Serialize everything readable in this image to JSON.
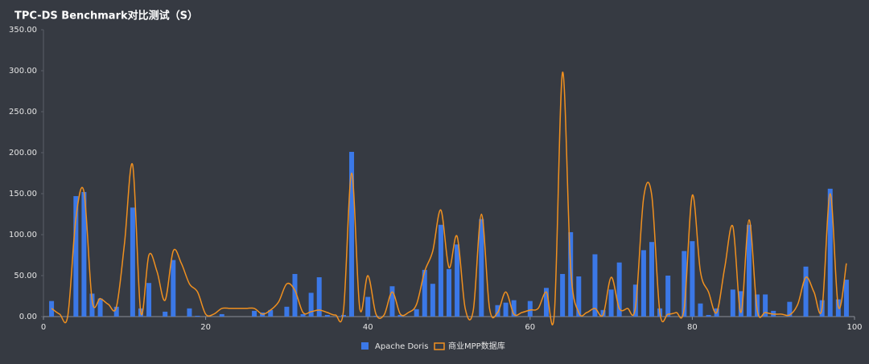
{
  "chart_data": {
    "type": "bar-line",
    "title": "TPC-DS Benchmark对比测试（S）",
    "x": [
      1,
      2,
      3,
      4,
      5,
      6,
      7,
      8,
      9,
      10,
      11,
      12,
      13,
      14,
      15,
      16,
      17,
      18,
      19,
      20,
      21,
      22,
      23,
      24,
      25,
      26,
      27,
      28,
      29,
      30,
      31,
      32,
      33,
      34,
      35,
      36,
      37,
      38,
      39,
      40,
      41,
      42,
      43,
      44,
      45,
      46,
      47,
      48,
      49,
      50,
      51,
      52,
      53,
      54,
      55,
      56,
      57,
      58,
      59,
      60,
      61,
      62,
      63,
      64,
      65,
      66,
      67,
      68,
      69,
      70,
      71,
      72,
      73,
      74,
      75,
      76,
      77,
      78,
      79,
      80,
      81,
      82,
      83,
      84,
      85,
      86,
      87,
      88,
      89,
      90,
      91,
      92,
      93,
      94,
      95,
      96,
      97,
      98,
      99
    ],
    "series": [
      {
        "name": "Apache Doris",
        "color": "#3b78e7",
        "kind": "bar",
        "values": [
          19,
          0,
          0,
          147,
          152,
          28,
          22,
          0,
          12,
          0,
          133,
          10,
          41,
          0,
          6,
          69,
          0,
          10,
          1,
          0,
          0,
          3,
          0,
          0,
          0,
          7,
          5,
          8,
          0,
          12,
          52,
          3,
          29,
          48,
          2,
          0,
          2,
          201,
          0,
          24,
          1,
          0,
          37,
          2,
          0,
          9,
          57,
          40,
          112,
          58,
          88,
          0,
          0,
          119,
          0,
          14,
          17,
          20,
          0,
          19,
          0,
          35,
          0,
          52,
          103,
          49,
          0,
          76,
          8,
          33,
          66,
          0,
          39,
          81,
          91,
          10,
          50,
          0,
          80,
          92,
          16,
          2,
          10,
          0,
          33,
          31,
          112,
          27,
          27,
          7,
          0,
          18,
          0,
          61,
          0,
          20,
          156,
          21,
          45
        ]
      },
      {
        "name": "商业MPP数据库",
        "color": "#f0901f",
        "kind": "line",
        "values": [
          10,
          3,
          1,
          120,
          152,
          20,
          22,
          15,
          12,
          90,
          185,
          5,
          75,
          55,
          20,
          80,
          65,
          40,
          30,
          3,
          3,
          10,
          10,
          10,
          10,
          10,
          3,
          8,
          18,
          40,
          32,
          5,
          6,
          8,
          5,
          2,
          8,
          175,
          10,
          50,
          3,
          2,
          30,
          3,
          5,
          15,
          55,
          80,
          130,
          60,
          98,
          10,
          8,
          125,
          10,
          5,
          30,
          3,
          5,
          8,
          10,
          30,
          5,
          298,
          60,
          5,
          5,
          10,
          2,
          48,
          10,
          10,
          12,
          145,
          148,
          5,
          3,
          5,
          10,
          148,
          55,
          30,
          5,
          60,
          110,
          5,
          118,
          8,
          5,
          3,
          3,
          2,
          15,
          48,
          30,
          10,
          150,
          12,
          65
        ]
      }
    ],
    "xlim": [
      0,
      100
    ],
    "xticks": [
      0,
      20,
      40,
      60,
      80,
      100
    ],
    "ylim": [
      0,
      350
    ],
    "yticks": [
      {
        "value": 0,
        "label": "0.00"
      },
      {
        "value": 50,
        "label": "50.00"
      },
      {
        "value": 100,
        "label": "100.00"
      },
      {
        "value": 150,
        "label": "150.00"
      },
      {
        "value": 200,
        "label": "200.00"
      },
      {
        "value": 250,
        "label": "250.00"
      },
      {
        "value": 300,
        "label": "300.00"
      },
      {
        "value": 350,
        "label": "350.00"
      }
    ],
    "grid": false,
    "legend": "bottom"
  }
}
